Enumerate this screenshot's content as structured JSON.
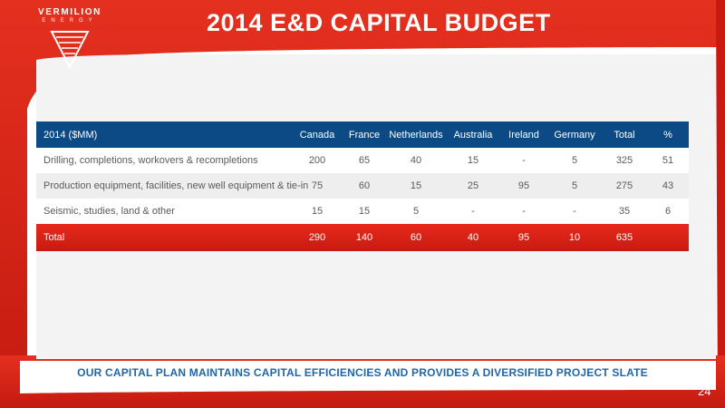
{
  "header": {
    "logo_name": "VERMILION",
    "logo_sub": "ENERGY",
    "title": "2014 E&D CAPITAL BUDGET"
  },
  "table": {
    "columns": [
      "2014 ($MM)",
      "Canada",
      "France",
      "Netherlands",
      "Australia",
      "Ireland",
      "Germany",
      "Total",
      "%"
    ],
    "rows": [
      [
        "Drilling, completions, workovers & recompletions",
        "200",
        "65",
        "40",
        "15",
        "-",
        "5",
        "325",
        "51"
      ],
      [
        "Production equipment, facilities, new well equipment & tie-in",
        "75",
        "60",
        "15",
        "25",
        "95",
        "5",
        "275",
        "43"
      ],
      [
        "Seismic, studies, land & other",
        "15",
        "15",
        "5",
        "-",
        "-",
        "-",
        "35",
        "6"
      ]
    ],
    "total": [
      "Total",
      "290",
      "140",
      "60",
      "40",
      "95",
      "10",
      "635",
      ""
    ]
  },
  "footer": {
    "tagline": "OUR CAPITAL PLAN MAINTAINS CAPITAL EFFICIENCIES AND PROVIDES A DIVERSIFIED PROJECT SLATE",
    "page_number": "24"
  },
  "colors": {
    "brand_red": "#d9261c",
    "header_blue": "#0b4a84",
    "tagline_blue": "#1f66a8"
  }
}
